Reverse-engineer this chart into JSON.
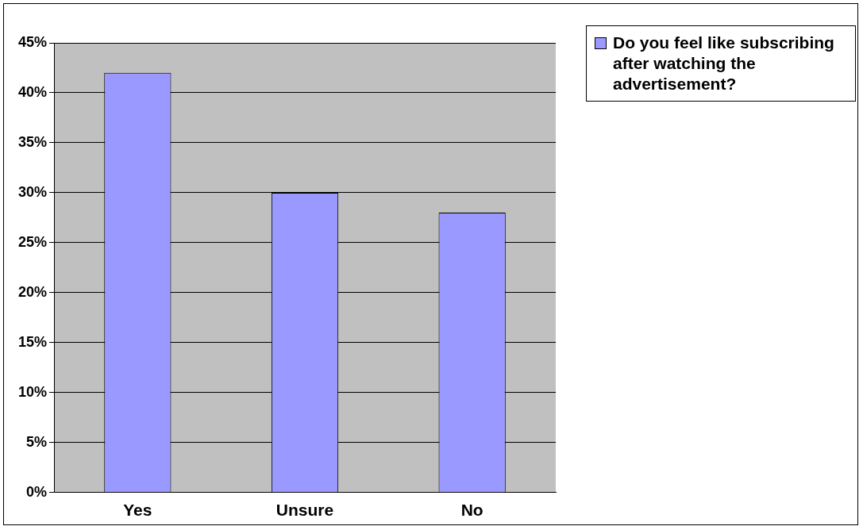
{
  "chart_data": {
    "type": "bar",
    "categories": [
      "Yes",
      "Unsure",
      "No"
    ],
    "series": [
      {
        "name": "Do you feel like subscribing after watching the advertisement?",
        "color": "#9999ff",
        "values": [
          42,
          30,
          28
        ]
      }
    ],
    "ylim": [
      0,
      45
    ],
    "yticks": [
      {
        "value": 0,
        "label": "0%"
      },
      {
        "value": 5,
        "label": "5%"
      },
      {
        "value": 10,
        "label": "10%"
      },
      {
        "value": 15,
        "label": "15%"
      },
      {
        "value": 20,
        "label": "20%"
      },
      {
        "value": 25,
        "label": "25%"
      },
      {
        "value": 30,
        "label": "30%"
      },
      {
        "value": 35,
        "label": "35%"
      },
      {
        "value": 40,
        "label": "40%"
      },
      {
        "value": 45,
        "label": "45%"
      }
    ],
    "grid": "y",
    "legend": "top right"
  }
}
